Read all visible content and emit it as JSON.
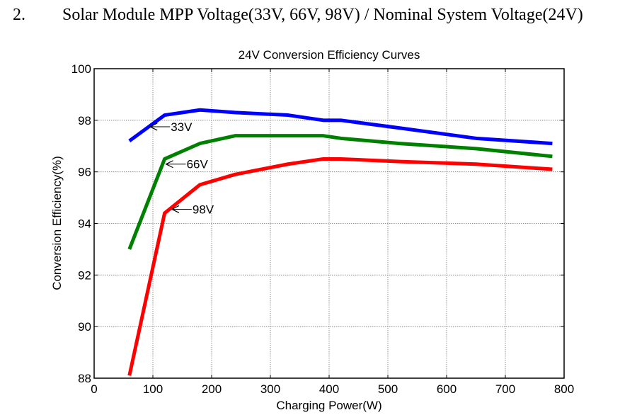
{
  "heading": {
    "number": "2.",
    "text": "Solar Module MPP Voltage(33V, 66V, 98V) / Nominal System Voltage(24V)"
  },
  "chart_data": {
    "type": "line",
    "title": "24V Conversion Efficiency Curves",
    "xlabel": "Charging Power(W)",
    "ylabel": "Conversion Efficiency(%)",
    "xlim": [
      0,
      800
    ],
    "ylim": [
      88,
      100
    ],
    "xticks": [
      0,
      100,
      200,
      300,
      400,
      500,
      600,
      700,
      800
    ],
    "yticks": [
      88,
      90,
      92,
      94,
      96,
      98,
      100
    ],
    "grid": true,
    "series": [
      {
        "name": "33V",
        "color": "#0000ff",
        "x": [
          60,
          120,
          180,
          240,
          330,
          390,
          420,
          520,
          650,
          780
        ],
        "y": [
          97.2,
          98.2,
          98.4,
          98.3,
          98.2,
          98.0,
          98.0,
          97.7,
          97.3,
          97.1
        ],
        "annotation": {
          "label": "33V",
          "x": 93,
          "y": 97.75
        }
      },
      {
        "name": "66V",
        "color": "#008000",
        "x": [
          60,
          120,
          180,
          240,
          330,
          390,
          420,
          520,
          650,
          780
        ],
        "y": [
          93.0,
          96.5,
          97.1,
          97.4,
          97.4,
          97.4,
          97.3,
          97.1,
          96.9,
          96.6
        ],
        "annotation": {
          "label": "66V",
          "x": 120,
          "y": 96.3
        }
      },
      {
        "name": "98V",
        "color": "#ff0000",
        "x": [
          60,
          120,
          180,
          240,
          330,
          390,
          420,
          520,
          650,
          780
        ],
        "y": [
          88.1,
          94.4,
          95.5,
          95.9,
          96.3,
          96.5,
          96.5,
          96.4,
          96.3,
          96.1
        ],
        "annotation": {
          "label": "98V",
          "x": 130,
          "y": 94.55
        }
      }
    ]
  }
}
